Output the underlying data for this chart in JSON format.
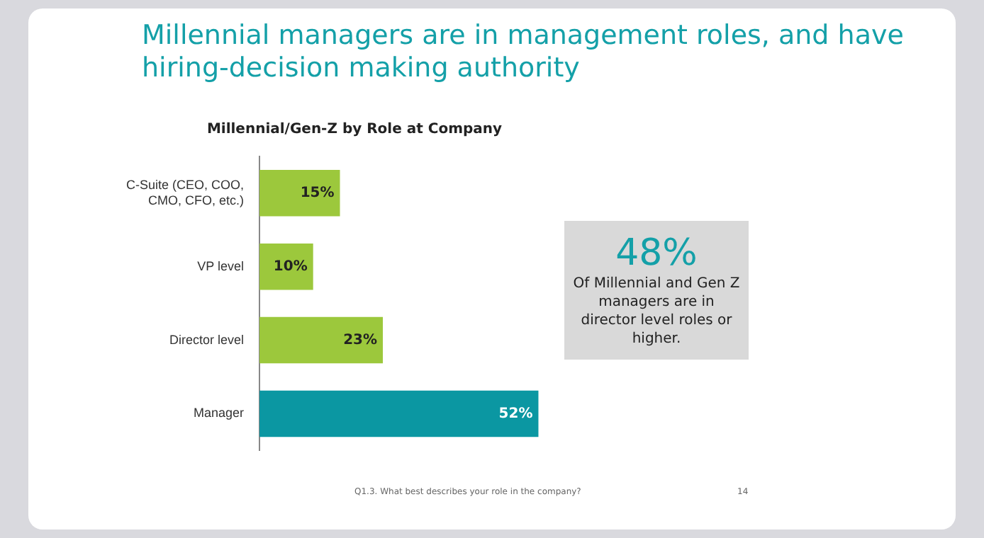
{
  "chart_data": {
    "type": "bar",
    "orientation": "horizontal",
    "title": "Millennial managers are in management roles, and have hiring-decision making authority",
    "subtitle": "Millennial/Gen-Z by Role at Company",
    "categories": [
      "C-Suite (CEO, COO, CMO, CFO, etc.)",
      "VP level",
      "Director level",
      "Manager"
    ],
    "values": [
      15,
      10,
      23,
      52
    ],
    "colors": [
      "#9cc83c",
      "#9cc83c",
      "#9cc83c",
      "#0b97a2"
    ],
    "value_labels": [
      "15%",
      "10%",
      "23%",
      "52%"
    ],
    "tick_labels": "y",
    "legend": false,
    "annotations": [
      "48%",
      "Of Millennial and Gen Z managers are in director level roles or higher.",
      "Q1.3. What best describes your role in the company?",
      "14"
    ]
  }
}
